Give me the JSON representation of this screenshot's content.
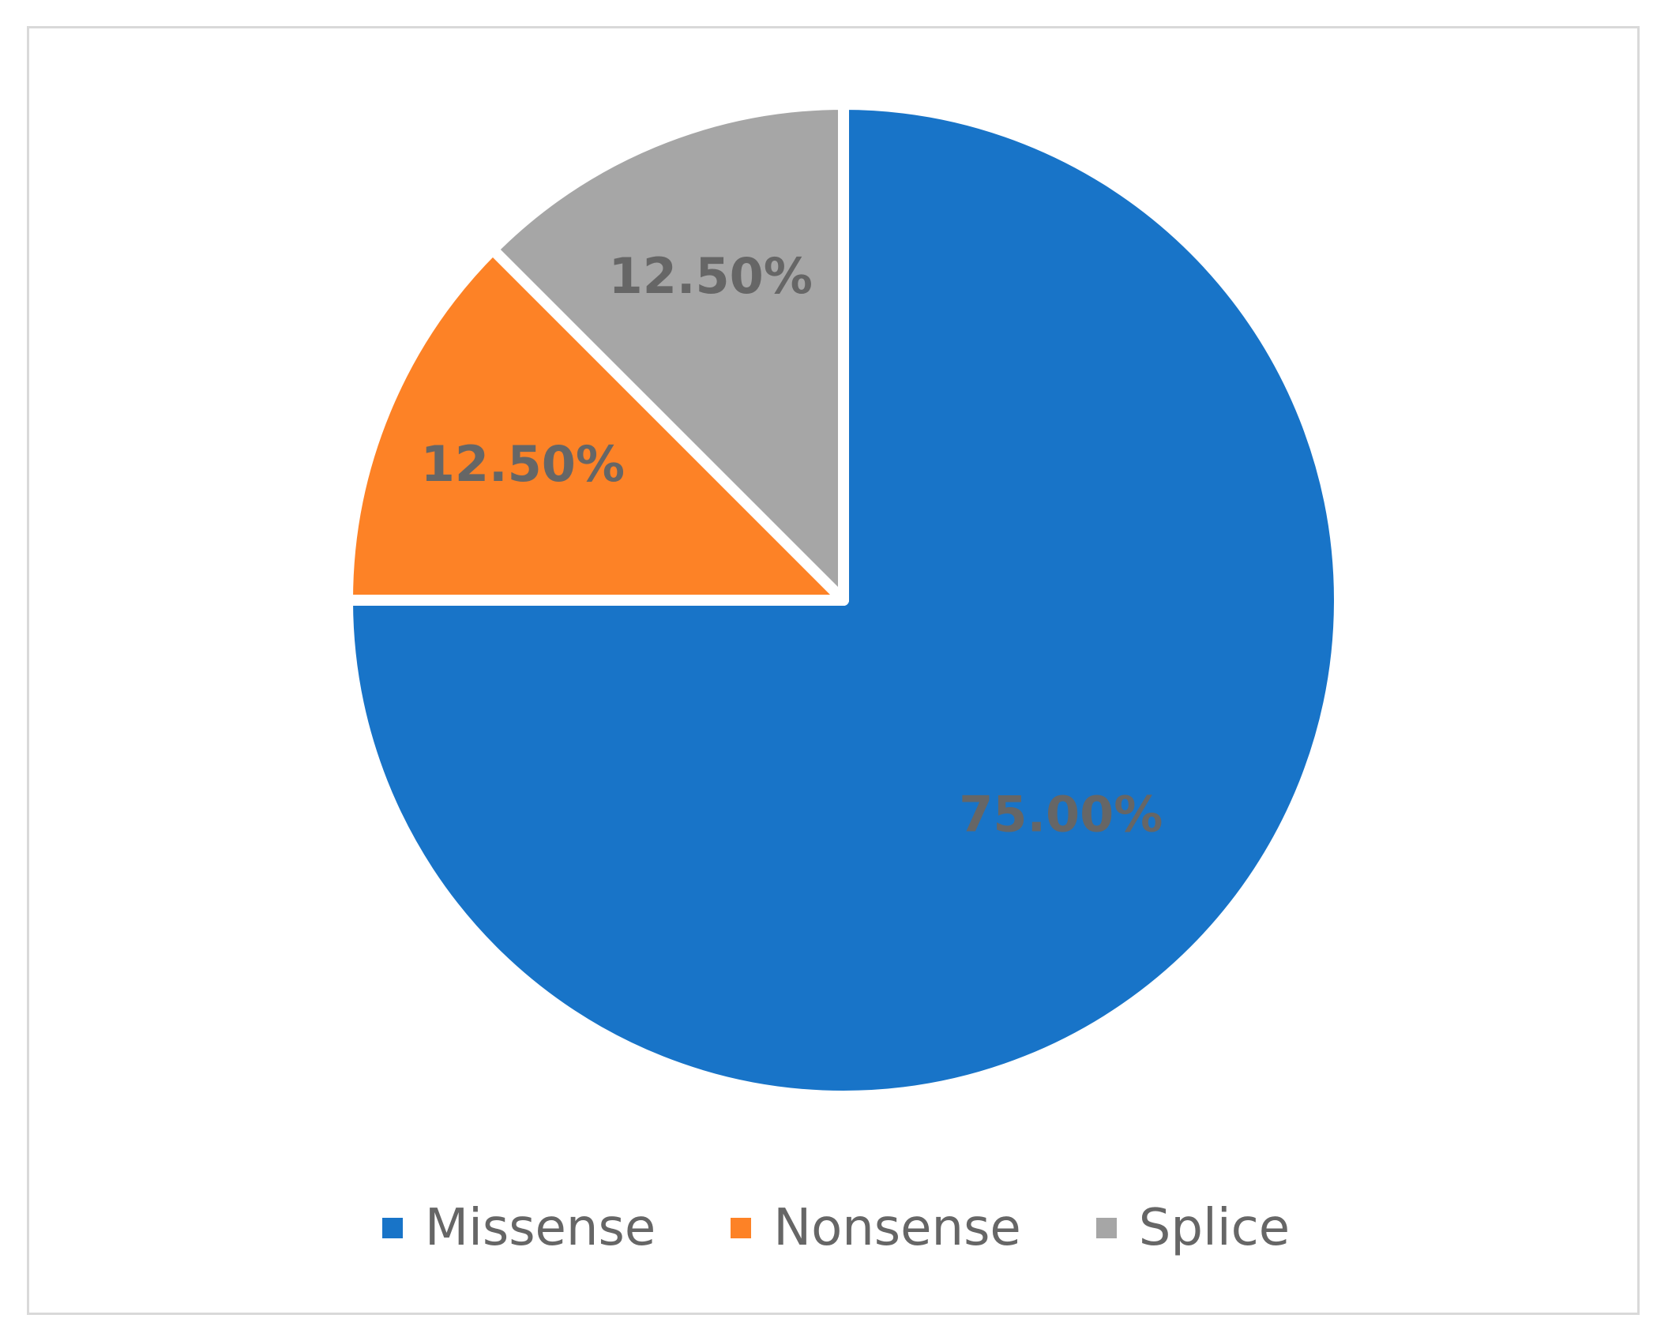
{
  "chart_data": {
    "type": "pie",
    "title": "",
    "slices": [
      {
        "name": "Missense",
        "value": 75.0,
        "label": "75.00%",
        "color": "#1874c8"
      },
      {
        "name": "Nonsense",
        "value": 12.5,
        "label": "12.50%",
        "color": "#fd8226"
      },
      {
        "name": "Splice",
        "value": 12.5,
        "label": "12.50%",
        "color": "#a6a6a6"
      }
    ],
    "start_angle_deg": 0,
    "direction": "clockwise",
    "legend_position": "bottom",
    "label_color": "#666666"
  },
  "legend": {
    "items": [
      {
        "label": "Missense",
        "color": "#1874c8"
      },
      {
        "label": "Nonsense",
        "color": "#fd8226"
      },
      {
        "label": "Splice",
        "color": "#a6a6a6"
      }
    ]
  }
}
